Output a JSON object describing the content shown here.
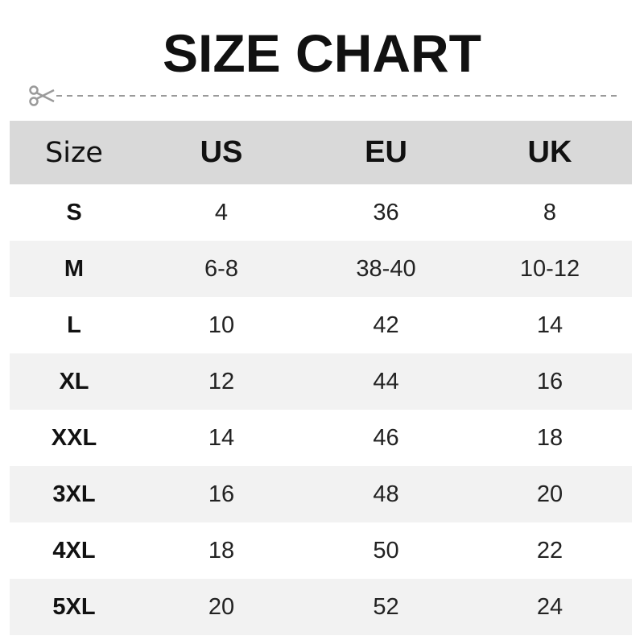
{
  "title": "SIZE CHART",
  "icons": {
    "cut_line": "scissors-icon"
  },
  "colors": {
    "header_bg": "#d9d9d9",
    "alt_row_bg": "#f2f2f2",
    "dash": "#9a9a9a"
  },
  "table": {
    "headers": [
      "Size",
      "US",
      "EU",
      "UK"
    ],
    "rows": [
      [
        "S",
        "4",
        "36",
        "8"
      ],
      [
        "M",
        "6-8",
        "38-40",
        "10-12"
      ],
      [
        "L",
        "10",
        "42",
        "14"
      ],
      [
        "XL",
        "12",
        "44",
        "16"
      ],
      [
        "XXL",
        "14",
        "46",
        "18"
      ],
      [
        "3XL",
        "16",
        "48",
        "20"
      ],
      [
        "4XL",
        "18",
        "50",
        "22"
      ],
      [
        "5XL",
        "20",
        "52",
        "24"
      ]
    ]
  }
}
